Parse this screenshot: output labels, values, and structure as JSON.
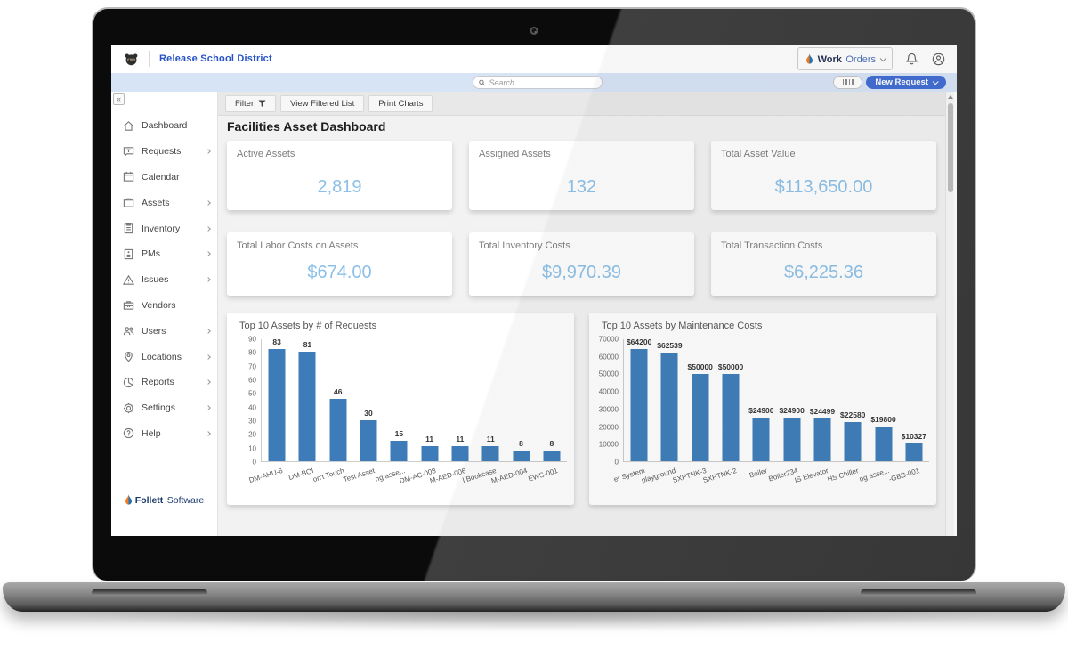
{
  "topbar": {
    "district": "Release School District",
    "work_orders": {
      "bold": "Work",
      "regular": "Orders"
    }
  },
  "searchbar": {
    "placeholder": "Search",
    "new_request_label": "New Request"
  },
  "toolbar": {
    "filter_label": "Filter",
    "view_filtered_label": "View Filtered List",
    "print_charts_label": "Print Charts"
  },
  "page_title": "Facilities Asset Dashboard",
  "sidebar": {
    "items": [
      {
        "label": "Dashboard",
        "icon": "home",
        "expandable": false
      },
      {
        "label": "Requests",
        "icon": "chat",
        "expandable": true
      },
      {
        "label": "Calendar",
        "icon": "calendar",
        "expandable": false
      },
      {
        "label": "Assets",
        "icon": "briefcase",
        "expandable": true
      },
      {
        "label": "Inventory",
        "icon": "clipboard",
        "expandable": true
      },
      {
        "label": "PMs",
        "icon": "document",
        "expandable": true
      },
      {
        "label": "Issues",
        "icon": "warning",
        "expandable": true
      },
      {
        "label": "Vendors",
        "icon": "toolbox",
        "expandable": false
      },
      {
        "label": "Users",
        "icon": "users",
        "expandable": true
      },
      {
        "label": "Locations",
        "icon": "pin",
        "expandable": true
      },
      {
        "label": "Reports",
        "icon": "pie",
        "expandable": true
      },
      {
        "label": "Settings",
        "icon": "gear",
        "expandable": true
      },
      {
        "label": "Help",
        "icon": "question",
        "expandable": true
      }
    ]
  },
  "footer_logo": {
    "bold": "Follett",
    "regular": "Software"
  },
  "kpis": [
    {
      "label": "Active Assets",
      "value": "2,819"
    },
    {
      "label": "Assigned Assets",
      "value": "132"
    },
    {
      "label": "Total Asset Value",
      "value": "$113,650.00"
    },
    {
      "label": "Total Labor Costs on Assets",
      "value": "$674.00"
    },
    {
      "label": "Total Inventory Costs",
      "value": "$9,970.39"
    },
    {
      "label": "Total Transaction Costs",
      "value": "$6,225.36"
    }
  ],
  "chart_data": [
    {
      "type": "bar",
      "title": "Top 10 Assets by # of Requests",
      "categories": [
        "DM-AHU-6",
        "DM-BOI",
        "on't Touch",
        "Test Asset",
        "ng asse...",
        "DM-AC-008",
        "M-AED-006",
        "l Bookcase",
        "M-AED-004",
        "EWS-001"
      ],
      "values": [
        83,
        81,
        46,
        30,
        15,
        11,
        11,
        11,
        8,
        8
      ],
      "bar_labels": [
        "83",
        "81",
        "46",
        "30",
        "15",
        "11",
        "11",
        "11",
        "8",
        "8"
      ],
      "xlabel": "",
      "ylabel": "",
      "ylim": [
        0,
        90
      ],
      "ytick_step": 10,
      "grid": false,
      "legend": "none"
    },
    {
      "type": "bar",
      "title": "Top 10 Assets by Maintenance Costs",
      "categories": [
        "er System",
        "playground",
        "SXPTNK-3",
        "SXPTNK-2",
        "Boiler",
        "Boiler234",
        "IS Elevator",
        "HS Chiller",
        "ng asse...",
        "-GBB-001"
      ],
      "values": [
        64200,
        62539,
        50000,
        50000,
        24900,
        24900,
        24499,
        22580,
        19800,
        10327
      ],
      "bar_labels": [
        "$64200",
        "$62539",
        "$50000",
        "$50000",
        "$24900",
        "$24900",
        "$24499",
        "$22580",
        "$19800",
        "$10327"
      ],
      "xlabel": "",
      "ylabel": "",
      "ylim": [
        0,
        70000
      ],
      "ytick_step": 10000,
      "grid": false,
      "legend": "none"
    }
  ],
  "colors": {
    "bar": "#3d7cb8",
    "kpi_value": "#8cc0e8",
    "accent_blue": "#3f6bd1",
    "link_blue": "#2653c5",
    "brand_navy": "#1d3c6e",
    "flame_orange": "#f47b20",
    "flame_blue": "#1b75bb",
    "searchbar_bg": "#d7e4f6"
  }
}
